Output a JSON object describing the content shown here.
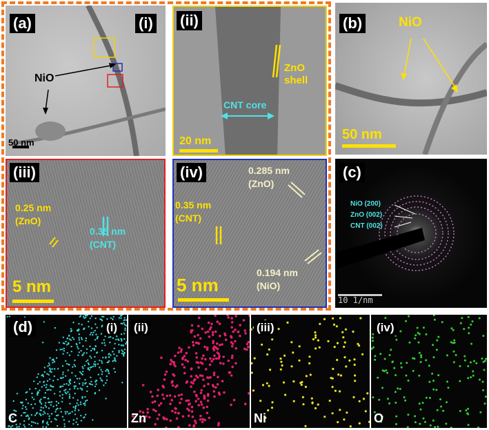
{
  "panel_a": {
    "label": "(a)",
    "sub_i": "(i)",
    "nio": "NiO",
    "scale": "50 nm"
  },
  "panel_a_ii": {
    "label": "(ii)",
    "zno_shell": "ZnO\nshell",
    "cnt_core": "CNT core",
    "scale": "20 nm"
  },
  "panel_a_iii": {
    "label": "(iii)",
    "d1": "0.25 nm\n(ZnO)",
    "d2": "0.35 nm\n(CNT)",
    "scale": "5 nm"
  },
  "panel_a_iv": {
    "label": "(iv)",
    "d1": "0.285 nm\n(ZnO)",
    "d2": "0.35 nm\n(CNT)",
    "d3": "0.194 nm\n(NiO)",
    "scale": "5 nm"
  },
  "panel_b": {
    "label": "(b)",
    "nio": "NiO",
    "scale": "50 nm"
  },
  "panel_c": {
    "label": "(c)",
    "ring1": "NiO (200)",
    "ring2": "ZnO (002)",
    "ring3": "CNT (002)",
    "scale": "10 1/nm"
  },
  "panel_d": {
    "label": "(d)",
    "maps": [
      {
        "sub": "(i)",
        "element": "C",
        "color": "#38d6d6"
      },
      {
        "sub": "(ii)",
        "element": "Zn",
        "color": "#e0206e"
      },
      {
        "sub": "(iii)",
        "element": "Ni",
        "color": "#e8e020"
      },
      {
        "sub": "(iv)",
        "element": "O",
        "color": "#30d030"
      }
    ]
  },
  "colors": {
    "frame_orange": "#f07a22",
    "frame_yellow": "#f2d300",
    "frame_red": "#e02020",
    "frame_blue": "#2030c0",
    "accent_yellow": "#ffe100",
    "accent_cyan": "#4fe3e6"
  }
}
